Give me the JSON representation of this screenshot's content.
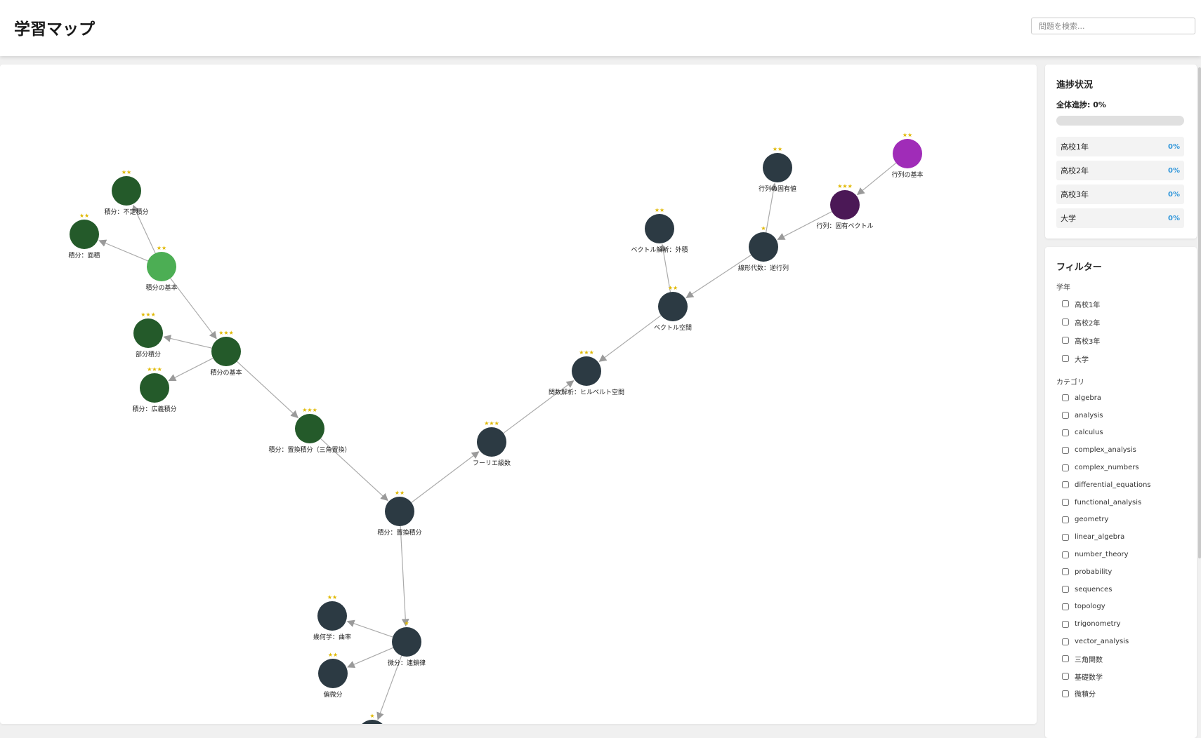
{
  "header": {
    "title": "学習マップ",
    "search_placeholder": "問題を検索..."
  },
  "map": {
    "nodes": [
      {
        "id": "n1",
        "label": "積分：不定積分",
        "stars": "★★",
        "color": "#245a2a"
      },
      {
        "id": "n2",
        "label": "積分：面積",
        "stars": "★★",
        "color": "#245a2a"
      },
      {
        "id": "n3",
        "label": "積分の基本",
        "stars": "★★",
        "color": "#4cae54"
      },
      {
        "id": "n4",
        "label": "部分積分",
        "stars": "★★★",
        "color": "#245a2a"
      },
      {
        "id": "n5",
        "label": "積分の基本",
        "stars": "★★★",
        "color": "#245a2a"
      },
      {
        "id": "n6",
        "label": "積分：広義積分",
        "stars": "★★★",
        "color": "#245a2a"
      },
      {
        "id": "n7",
        "label": "積分：置換積分（三角置換）",
        "stars": "★★★",
        "color": "#245a2a"
      },
      {
        "id": "n8",
        "label": "積分：置換積分",
        "stars": "★★",
        "color": "#2c3a43"
      },
      {
        "id": "n9",
        "label": "フーリエ級数",
        "stars": "★★★",
        "color": "#2c3a43"
      },
      {
        "id": "n10",
        "label": "関数解析：ヒルベルト空間",
        "stars": "★★★",
        "color": "#2c3a43"
      },
      {
        "id": "n11",
        "label": "ベクトル空間",
        "stars": "★★",
        "color": "#2c3a43"
      },
      {
        "id": "n12",
        "label": "ベクトル解析：外積",
        "stars": "★★",
        "color": "#2c3a43"
      },
      {
        "id": "n13",
        "label": "線形代数：逆行列",
        "stars": "★",
        "color": "#2c3a43"
      },
      {
        "id": "n14",
        "label": "行列の固有値",
        "stars": "★★",
        "color": "#2c3a43"
      },
      {
        "id": "n15",
        "label": "行列：固有ベクトル",
        "stars": "★★★",
        "color": "#4b1856"
      },
      {
        "id": "n16",
        "label": "行列の基本",
        "stars": "★★",
        "color": "#a02cb8"
      },
      {
        "id": "n17",
        "label": "幾何学：曲率",
        "stars": "★★",
        "color": "#2c3a43"
      },
      {
        "id": "n18",
        "label": "微分：連鎖律",
        "stars": "★",
        "color": "#2c3a43"
      },
      {
        "id": "n19",
        "label": "偏微分",
        "stars": "★★",
        "color": "#2c3a43"
      },
      {
        "id": "n20",
        "label": "",
        "stars": "★",
        "color": "#2c3a43"
      }
    ],
    "edges": [
      [
        "n3",
        "n1"
      ],
      [
        "n3",
        "n2"
      ],
      [
        "n3",
        "n5"
      ],
      [
        "n5",
        "n4"
      ],
      [
        "n5",
        "n6"
      ],
      [
        "n5",
        "n7"
      ],
      [
        "n7",
        "n8"
      ],
      [
        "n8",
        "n9"
      ],
      [
        "n9",
        "n10"
      ],
      [
        "n11",
        "n10"
      ],
      [
        "n11",
        "n12"
      ],
      [
        "n13",
        "n11"
      ],
      [
        "n13",
        "n14"
      ],
      [
        "n15",
        "n13"
      ],
      [
        "n16",
        "n15"
      ],
      [
        "n8",
        "n18"
      ],
      [
        "n18",
        "n17"
      ],
      [
        "n18",
        "n19"
      ],
      [
        "n18",
        "n20"
      ]
    ],
    "edge_color": "#aaaaaa"
  },
  "progress": {
    "title": "進捗状況",
    "overall_label": "全体進捗: 0%",
    "overall_fraction": 0,
    "grades": [
      {
        "name": "高校1年",
        "pct": "0%"
      },
      {
        "name": "高校2年",
        "pct": "0%"
      },
      {
        "name": "高校3年",
        "pct": "0%"
      },
      {
        "name": "大学",
        "pct": "0%"
      }
    ],
    "accent_color": "#3498db"
  },
  "filters": {
    "title": "フィルター",
    "grade_title": "学年",
    "grades": [
      "高校1年",
      "高校2年",
      "高校3年",
      "大学"
    ],
    "category_title": "カテゴリ",
    "categories": [
      "algebra",
      "analysis",
      "calculus",
      "complex_analysis",
      "complex_numbers",
      "differential_equations",
      "functional_analysis",
      "geometry",
      "linear_algebra",
      "number_theory",
      "probability",
      "sequences",
      "topology",
      "trigonometry",
      "vector_analysis",
      "三角関数",
      "基礎数学",
      "微積分"
    ]
  }
}
